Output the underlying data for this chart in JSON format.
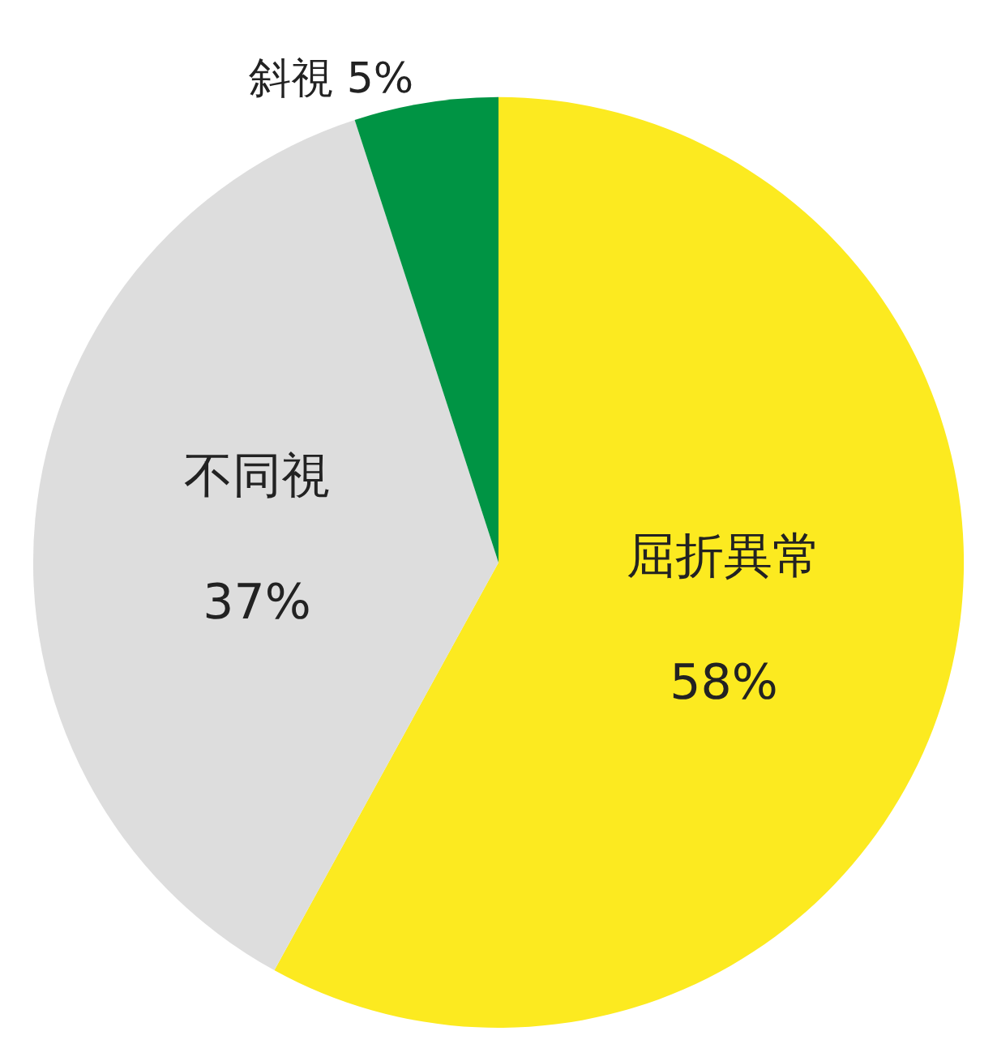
{
  "chart_data": {
    "type": "pie",
    "categories": [
      "屈折異常",
      "不同視",
      "斜視"
    ],
    "values": [
      58,
      37,
      5
    ],
    "colors": [
      "#fcea20",
      "#dddddd",
      "#009444"
    ],
    "value_labels": [
      "58%",
      "37%",
      "5%"
    ]
  }
}
